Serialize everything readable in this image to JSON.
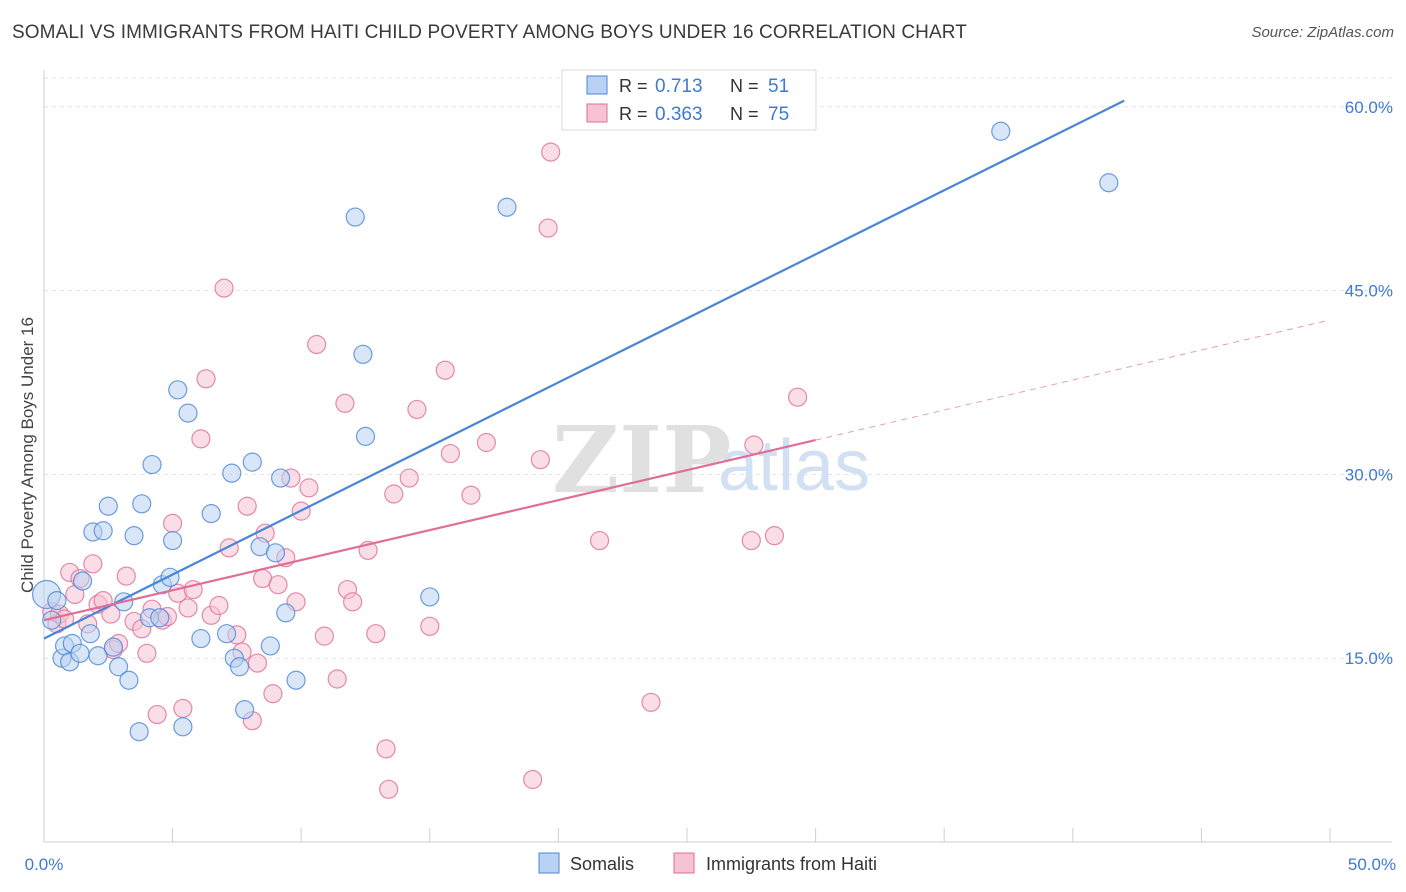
{
  "title": "SOMALI VS IMMIGRANTS FROM HAITI CHILD POVERTY AMONG BOYS UNDER 16 CORRELATION CHART",
  "source": "Source: ZipAtlas.com",
  "watermark": {
    "zip": "ZIP",
    "atlas": "atlas"
  },
  "colors": {
    "somalis": "#4a86d8",
    "somalis_fill": "#b9d2f3",
    "haiti": "#e06e98",
    "haiti_fill": "#f6c3d4",
    "tick": "#3f7ad6"
  },
  "legend": {
    "r_label": "R =",
    "n_label": "N =",
    "items": [
      {
        "name": "Somalis",
        "r": "0.713",
        "n": "51"
      },
      {
        "name": "Immigrants from Haiti",
        "r": "0.363",
        "n": "75"
      }
    ]
  },
  "chart_data": {
    "type": "scatter",
    "title": "SOMALI VS IMMIGRANTS FROM HAITI CHILD POVERTY AMONG BOYS UNDER 16 CORRELATION CHART",
    "xlabel": "",
    "ylabel": "Child Poverty Among Boys Under 16",
    "xlim": [
      0,
      50
    ],
    "ylim": [
      0,
      63
    ],
    "x_tick_labels": [
      "0.0%",
      "50.0%"
    ],
    "y_ticks": [
      15,
      30,
      45,
      60
    ],
    "y_tick_labels": [
      "15.0%",
      "30.0%",
      "45.0%",
      "60.0%"
    ],
    "grid": true,
    "legend_position": "top-center",
    "series": [
      {
        "name": "Somalis",
        "points": [
          [
            0.1,
            20.2
          ],
          [
            0.3,
            18.1
          ],
          [
            0.5,
            19.7
          ],
          [
            0.7,
            15.0
          ],
          [
            0.8,
            16.0
          ],
          [
            1.0,
            14.7
          ],
          [
            1.1,
            16.2
          ],
          [
            1.4,
            15.4
          ],
          [
            1.5,
            21.3
          ],
          [
            1.8,
            17.0
          ],
          [
            1.9,
            25.3
          ],
          [
            2.1,
            15.2
          ],
          [
            2.3,
            25.4
          ],
          [
            2.5,
            27.4
          ],
          [
            2.7,
            15.9
          ],
          [
            2.9,
            14.3
          ],
          [
            3.1,
            19.6
          ],
          [
            3.3,
            13.2
          ],
          [
            3.5,
            25.0
          ],
          [
            3.7,
            9.0
          ],
          [
            3.8,
            27.6
          ],
          [
            4.1,
            18.3
          ],
          [
            4.2,
            30.8
          ],
          [
            4.5,
            18.3
          ],
          [
            4.6,
            21.0
          ],
          [
            4.9,
            21.6
          ],
          [
            5.0,
            24.6
          ],
          [
            5.2,
            36.9
          ],
          [
            5.4,
            9.4
          ],
          [
            5.6,
            35.0
          ],
          [
            6.1,
            16.6
          ],
          [
            6.5,
            26.8
          ],
          [
            7.1,
            17.0
          ],
          [
            7.3,
            30.1
          ],
          [
            7.4,
            15.0
          ],
          [
            7.6,
            14.3
          ],
          [
            7.8,
            10.8
          ],
          [
            8.1,
            31.0
          ],
          [
            8.4,
            24.1
          ],
          [
            8.8,
            16.0
          ],
          [
            9.0,
            23.6
          ],
          [
            9.2,
            29.7
          ],
          [
            9.4,
            18.7
          ],
          [
            9.8,
            13.2
          ],
          [
            12.1,
            51.0
          ],
          [
            12.4,
            39.8
          ],
          [
            12.5,
            33.1
          ],
          [
            15.0,
            20.0
          ],
          [
            18.0,
            51.8
          ],
          [
            37.2,
            58.0
          ],
          [
            41.4,
            53.8
          ]
        ],
        "trend": {
          "x": [
            0,
            42
          ],
          "y": [
            16.6,
            60.5
          ]
        }
      },
      {
        "name": "Immigrants from Haiti",
        "points": [
          [
            0.3,
            18.8
          ],
          [
            0.5,
            17.8
          ],
          [
            0.6,
            18.6
          ],
          [
            0.8,
            18.2
          ],
          [
            1.0,
            22.0
          ],
          [
            1.2,
            20.2
          ],
          [
            1.4,
            21.5
          ],
          [
            1.7,
            17.8
          ],
          [
            1.9,
            22.7
          ],
          [
            2.1,
            19.4
          ],
          [
            2.3,
            19.7
          ],
          [
            2.6,
            18.6
          ],
          [
            2.7,
            15.7
          ],
          [
            2.9,
            16.2
          ],
          [
            3.2,
            21.7
          ],
          [
            3.5,
            18.0
          ],
          [
            3.8,
            17.4
          ],
          [
            4.0,
            15.4
          ],
          [
            4.2,
            19.0
          ],
          [
            4.4,
            10.4
          ],
          [
            4.6,
            18.1
          ],
          [
            4.8,
            18.4
          ],
          [
            5.0,
            26.0
          ],
          [
            5.2,
            20.3
          ],
          [
            5.4,
            10.9
          ],
          [
            5.6,
            19.1
          ],
          [
            5.8,
            20.6
          ],
          [
            6.1,
            32.9
          ],
          [
            6.3,
            37.8
          ],
          [
            6.5,
            18.5
          ],
          [
            6.8,
            19.3
          ],
          [
            7.0,
            45.2
          ],
          [
            7.2,
            24.0
          ],
          [
            7.5,
            16.9
          ],
          [
            7.7,
            15.5
          ],
          [
            7.9,
            27.4
          ],
          [
            8.1,
            9.9
          ],
          [
            8.3,
            14.6
          ],
          [
            8.5,
            21.5
          ],
          [
            8.6,
            25.2
          ],
          [
            8.9,
            12.1
          ],
          [
            9.1,
            21.0
          ],
          [
            9.4,
            23.2
          ],
          [
            9.6,
            29.7
          ],
          [
            9.8,
            19.6
          ],
          [
            10.0,
            27.0
          ],
          [
            10.3,
            28.9
          ],
          [
            10.6,
            40.6
          ],
          [
            10.9,
            16.8
          ],
          [
            11.4,
            13.3
          ],
          [
            11.7,
            35.8
          ],
          [
            11.8,
            20.6
          ],
          [
            12.0,
            19.6
          ],
          [
            12.6,
            23.8
          ],
          [
            12.9,
            17.0
          ],
          [
            13.3,
            7.6
          ],
          [
            13.4,
            4.3
          ],
          [
            13.6,
            28.4
          ],
          [
            14.2,
            29.7
          ],
          [
            14.5,
            35.3
          ],
          [
            15.0,
            17.6
          ],
          [
            15.6,
            38.5
          ],
          [
            15.8,
            31.7
          ],
          [
            16.6,
            28.3
          ],
          [
            17.2,
            32.6
          ],
          [
            19.0,
            5.1
          ],
          [
            19.3,
            31.2
          ],
          [
            19.7,
            56.3
          ],
          [
            19.6,
            50.1
          ],
          [
            21.6,
            24.6
          ],
          [
            23.6,
            11.4
          ],
          [
            27.5,
            24.6
          ],
          [
            27.6,
            32.4
          ],
          [
            28.4,
            25.0
          ],
          [
            29.3,
            36.3
          ]
        ],
        "trend": {
          "x": [
            0,
            30
          ],
          "y": [
            18.1,
            32.8
          ]
        },
        "trend_extension": {
          "x": [
            30,
            50
          ],
          "y": [
            32.8,
            42.6
          ]
        }
      }
    ]
  }
}
